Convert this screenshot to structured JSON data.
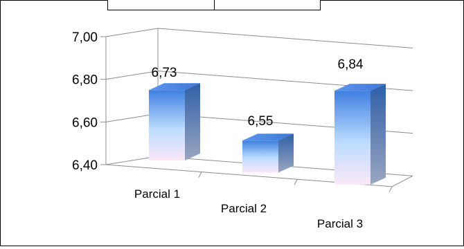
{
  "chart_data": {
    "type": "bar",
    "categories": [
      "Parcial 1",
      "Parcial 2",
      "Parcial 3"
    ],
    "values": [
      6.73,
      6.55,
      6.84
    ],
    "value_labels": [
      "6,73",
      "6,55",
      "6,84"
    ],
    "y_ticks": [
      6.4,
      6.6,
      6.8,
      7.0
    ],
    "y_tick_labels": [
      "6,40",
      "6,60",
      "6,80",
      "7,00"
    ],
    "ylim": [
      6.4,
      7.0
    ],
    "title": "",
    "xlabel": "",
    "ylabel": "",
    "grid": true,
    "three_d": true,
    "bar_gradient": [
      "#3f7fe0",
      "#bcdcff",
      "#fbe8f8"
    ]
  }
}
